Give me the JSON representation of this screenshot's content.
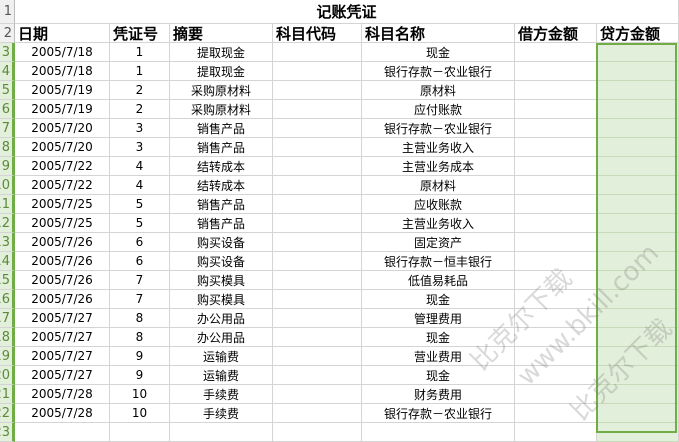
{
  "title": "记账凭证",
  "headers": [
    "日期",
    "凭证号",
    "摘要",
    "科目代码",
    "科目名称",
    "借方金额",
    "贷方金额"
  ],
  "row_numbers": {
    "title": "1",
    "header": "2"
  },
  "rows": [
    {
      "n": "3",
      "date": "2005/7/18",
      "no": "1",
      "summary": "提取现金",
      "code": "",
      "account": "现金",
      "debit": "",
      "credit": ""
    },
    {
      "n": "4",
      "date": "2005/7/18",
      "no": "1",
      "summary": "提取现金",
      "code": "",
      "account": "银行存款－农业银行",
      "debit": "",
      "credit": ""
    },
    {
      "n": "5",
      "date": "2005/7/19",
      "no": "2",
      "summary": "采购原材料",
      "code": "",
      "account": "原材料",
      "debit": "",
      "credit": ""
    },
    {
      "n": "6",
      "date": "2005/7/19",
      "no": "2",
      "summary": "采购原材料",
      "code": "",
      "account": "应付账款",
      "debit": "",
      "credit": ""
    },
    {
      "n": "7",
      "date": "2005/7/20",
      "no": "3",
      "summary": "销售产品",
      "code": "",
      "account": "银行存款－农业银行",
      "debit": "",
      "credit": ""
    },
    {
      "n": "8",
      "date": "2005/7/20",
      "no": "3",
      "summary": "销售产品",
      "code": "",
      "account": "主营业务收入",
      "debit": "",
      "credit": ""
    },
    {
      "n": "9",
      "date": "2005/7/22",
      "no": "4",
      "summary": "结转成本",
      "code": "",
      "account": "主营业务成本",
      "debit": "",
      "credit": ""
    },
    {
      "n": "10",
      "date": "2005/7/22",
      "no": "4",
      "summary": "结转成本",
      "code": "",
      "account": "原材料",
      "debit": "",
      "credit": ""
    },
    {
      "n": "11",
      "date": "2005/7/25",
      "no": "5",
      "summary": "销售产品",
      "code": "",
      "account": "应收账款",
      "debit": "",
      "credit": ""
    },
    {
      "n": "12",
      "date": "2005/7/25",
      "no": "5",
      "summary": "销售产品",
      "code": "",
      "account": "主营业务收入",
      "debit": "",
      "credit": ""
    },
    {
      "n": "13",
      "date": "2005/7/26",
      "no": "6",
      "summary": "购买设备",
      "code": "",
      "account": "固定资产",
      "debit": "",
      "credit": ""
    },
    {
      "n": "14",
      "date": "2005/7/26",
      "no": "6",
      "summary": "购买设备",
      "code": "",
      "account": "银行存款－恒丰银行",
      "debit": "",
      "credit": ""
    },
    {
      "n": "15",
      "date": "2005/7/26",
      "no": "7",
      "summary": "购买模具",
      "code": "",
      "account": "低值易耗品",
      "debit": "",
      "credit": ""
    },
    {
      "n": "16",
      "date": "2005/7/26",
      "no": "7",
      "summary": "购买模具",
      "code": "",
      "account": "现金",
      "debit": "",
      "credit": ""
    },
    {
      "n": "17",
      "date": "2005/7/27",
      "no": "8",
      "summary": "办公用品",
      "code": "",
      "account": "管理费用",
      "debit": "",
      "credit": ""
    },
    {
      "n": "18",
      "date": "2005/7/27",
      "no": "8",
      "summary": "办公用品",
      "code": "",
      "account": "现金",
      "debit": "",
      "credit": ""
    },
    {
      "n": "19",
      "date": "2005/7/27",
      "no": "9",
      "summary": "运输费",
      "code": "",
      "account": "营业费用",
      "debit": "",
      "credit": ""
    },
    {
      "n": "20",
      "date": "2005/7/27",
      "no": "9",
      "summary": "运输费",
      "code": "",
      "account": "现金",
      "debit": "",
      "credit": ""
    },
    {
      "n": "21",
      "date": "2005/7/28",
      "no": "10",
      "summary": "手续费",
      "code": "",
      "account": "财务费用",
      "debit": "",
      "credit": ""
    },
    {
      "n": "22",
      "date": "2005/7/28",
      "no": "10",
      "summary": "手续费",
      "code": "",
      "account": "银行存款－农业银行",
      "debit": "",
      "credit": ""
    },
    {
      "n": "23",
      "date": "",
      "no": "",
      "summary": "",
      "code": "",
      "account": "",
      "debit": "",
      "credit": ""
    }
  ],
  "selected_column": "贷方金额",
  "selection_color": "#70ad47",
  "watermark": [
    "比克尔下载",
    "www.bkill.com",
    "比克尔下载"
  ]
}
